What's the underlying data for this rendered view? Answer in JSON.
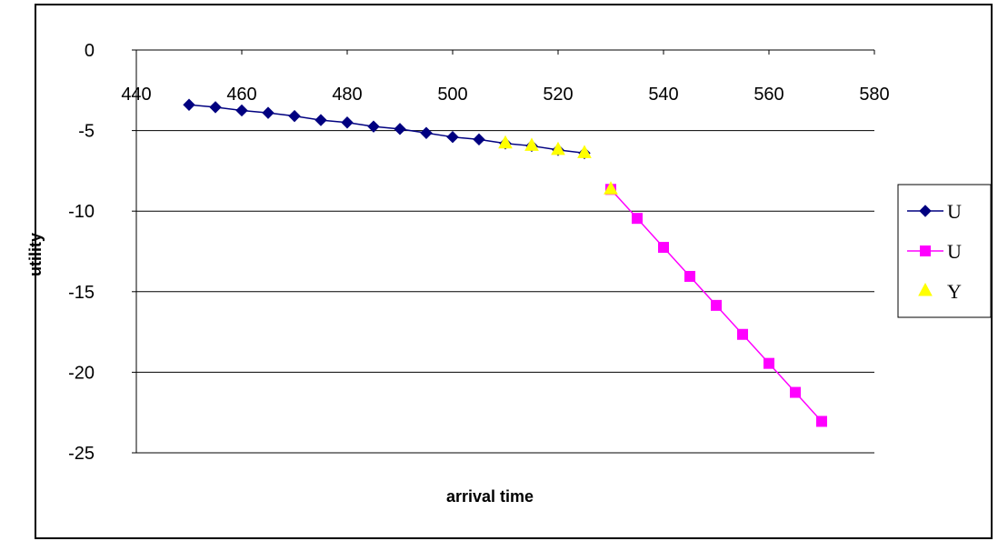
{
  "chart_data": {
    "type": "line",
    "xlabel": "arrival time",
    "ylabel": "utility",
    "xlim": [
      440,
      580
    ],
    "ylim": [
      -25,
      0
    ],
    "x_ticks": [
      440,
      460,
      480,
      500,
      520,
      540,
      560,
      580
    ],
    "y_ticks": [
      0,
      -5,
      -10,
      -15,
      -20,
      -25
    ],
    "grid": "horizontal",
    "legend_position": "right",
    "series": [
      {
        "name": "U",
        "style": "line-diamond",
        "color": "#000080",
        "x": [
          450,
          455,
          460,
          465,
          470,
          475,
          480,
          485,
          490,
          495,
          500,
          505,
          510,
          515,
          520,
          525
        ],
        "y": [
          -3.4,
          -3.55,
          -3.75,
          -3.9,
          -4.1,
          -4.35,
          -4.5,
          -4.75,
          -4.9,
          -5.15,
          -5.4,
          -5.55,
          -5.8,
          -5.95,
          -6.2,
          -6.4
        ]
      },
      {
        "name": "U",
        "style": "line-square",
        "color": "#ff00ff",
        "x": [
          530,
          535,
          540,
          545,
          550,
          555,
          560,
          565,
          570
        ],
        "y": [
          -8.65,
          -10.45,
          -12.25,
          -14.05,
          -15.85,
          -17.65,
          -19.45,
          -21.25,
          -23.05
        ]
      },
      {
        "name": "Y",
        "style": "marker-triangle",
        "color": "#ffff00",
        "x": [
          510,
          515,
          520,
          525,
          530
        ],
        "y": [
          -5.8,
          -5.95,
          -6.2,
          -6.4,
          -8.65
        ]
      }
    ]
  }
}
